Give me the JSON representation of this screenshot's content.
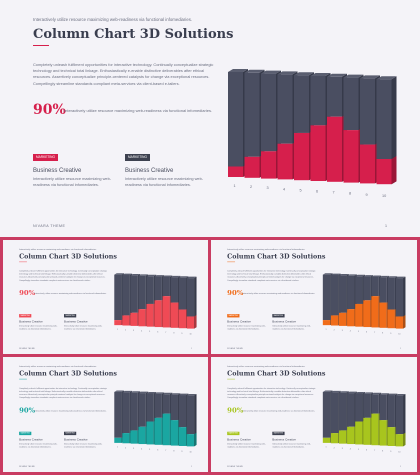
{
  "slide": {
    "subtitle": "Interactively utilize resource maximizing web-readiness via functional infomediaries.",
    "title": "Column Chart 3D Solutions",
    "paragraph": "Completely unleash fulfilment opportunities for interactive technology. Continually conceptualize strategic technology and technical total linkage. Enthusiastically e-enable distinctive deliverables after ethical resources. Assertively conceptualize principle-centered catalysts for change via exceptional resources. Compellingly streamline standards compliant meta-services via client-based e-tailers.",
    "stat": "90%",
    "stat_desc": "Interactively utilize resource maximizing web-readiness via functional infomediaries.",
    "columns": [
      {
        "tag": "MARKETING",
        "title": "Business Creative",
        "text": "Interactively utilize resource maximizing web-readiness via functional infomediaries."
      },
      {
        "tag": "MARKETING",
        "title": "Business Creative",
        "text": "Interactively utilize resource maximizing web-readiness via functional infomediaries."
      }
    ],
    "footer": "NIVARA THEME",
    "page": "1"
  },
  "variants": [
    {
      "accent": "#d61f4c",
      "tag2": "#3d4150"
    },
    {
      "accent": "#ef4a55",
      "tag2": "#3d4150"
    },
    {
      "accent": "#f06c1a",
      "tag2": "#3d4150"
    },
    {
      "accent": "#1aa6a1",
      "tag2": "#3d4150"
    },
    {
      "accent": "#a8c51e",
      "tag2": "#3d4150"
    }
  ],
  "chart_data": {
    "type": "bar",
    "categories": [
      "1",
      "2",
      "3",
      "4",
      "5",
      "6",
      "7",
      "8",
      "9",
      "10"
    ],
    "series": [
      {
        "values": [
          0.1,
          0.2,
          0.26,
          0.34,
          0.45,
          0.53,
          0.62,
          0.5,
          0.37,
          0.24
        ]
      }
    ],
    "ylim": [
      0,
      1
    ]
  }
}
